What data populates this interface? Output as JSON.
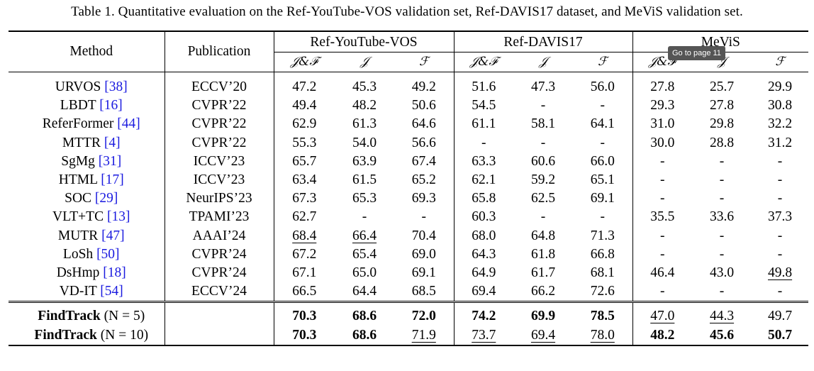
{
  "caption": "Table 1. Quantitative evaluation on the Ref-YouTube-VOS validation set, Ref-DAVIS17 dataset, and MeViS validation set.",
  "headers": {
    "method": "Method",
    "publication": "Publication",
    "groups": [
      "Ref-YouTube-VOS",
      "Ref-DAVIS17",
      "MeViS"
    ],
    "metrics": [
      "𝒥&ℱ",
      "𝒥",
      "ℱ",
      "𝒥&ℱ",
      "𝒥",
      "ℱ",
      "𝒥&ℱ",
      "𝒥",
      "ℱ"
    ]
  },
  "rows": [
    {
      "name": "URVOS ",
      "ref": "[38]",
      "pub": "ECCV’20",
      "vals": [
        "47.2",
        "45.3",
        "49.2",
        "51.6",
        "47.3",
        "56.0",
        "27.8",
        "25.7",
        "29.9"
      ]
    },
    {
      "name": "LBDT ",
      "ref": "[16]",
      "pub": "CVPR’22",
      "vals": [
        "49.4",
        "48.2",
        "50.6",
        "54.5",
        "-",
        "-",
        "29.3",
        "27.8",
        "30.8"
      ]
    },
    {
      "name": "ReferFormer ",
      "ref": "[44]",
      "pub": "CVPR’22",
      "vals": [
        "62.9",
        "61.3",
        "64.6",
        "61.1",
        "58.1",
        "64.1",
        "31.0",
        "29.8",
        "32.2"
      ]
    },
    {
      "name": "MTTR ",
      "ref": "[4]",
      "pub": "CVPR’22",
      "vals": [
        "55.3",
        "54.0",
        "56.6",
        "-",
        "-",
        "-",
        "30.0",
        "28.8",
        "31.2"
      ]
    },
    {
      "name": "SgMg ",
      "ref": "[31]",
      "pub": "ICCV’23",
      "vals": [
        "65.7",
        "63.9",
        "67.4",
        "63.3",
        "60.6",
        "66.0",
        "-",
        "-",
        "-"
      ]
    },
    {
      "name": "HTML ",
      "ref": "[17]",
      "pub": "ICCV’23",
      "vals": [
        "63.4",
        "61.5",
        "65.2",
        "62.1",
        "59.2",
        "65.1",
        "-",
        "-",
        "-"
      ]
    },
    {
      "name": "SOC ",
      "ref": "[29]",
      "pub": "NeurIPS’23",
      "vals": [
        "67.3",
        "65.3",
        "69.3",
        "65.8",
        "62.5",
        "69.1",
        "-",
        "-",
        "-"
      ]
    },
    {
      "name": "VLT+TC ",
      "ref": "[13]",
      "pub": "TPAMI’23",
      "vals": [
        "62.7",
        "-",
        "-",
        "60.3",
        "-",
        "-",
        "35.5",
        "33.6",
        "37.3"
      ]
    },
    {
      "name": "MUTR ",
      "ref": "[47]",
      "pub": "AAAI’24",
      "vals": [
        "68.4",
        "66.4",
        "70.4",
        "68.0",
        "64.8",
        "71.3",
        "-",
        "-",
        "-"
      ]
    },
    {
      "name": "LoSh ",
      "ref": "[50]",
      "pub": "CVPR’24",
      "vals": [
        "67.2",
        "65.4",
        "69.0",
        "64.3",
        "61.8",
        "66.8",
        "-",
        "-",
        "-"
      ]
    },
    {
      "name": "DsHmp ",
      "ref": "[18]",
      "pub": "CVPR’24",
      "vals": [
        "67.1",
        "65.0",
        "69.1",
        "64.9",
        "61.7",
        "68.1",
        "46.4",
        "43.0",
        "49.8"
      ]
    },
    {
      "name": "VD-IT ",
      "ref": "[54]",
      "pub": "ECCV’24",
      "vals": [
        "66.5",
        "64.4",
        "68.5",
        "69.4",
        "66.2",
        "72.6",
        "-",
        "-",
        "-"
      ]
    }
  ],
  "ours": [
    {
      "name": "FindTrack",
      "param": " (N = 5)",
      "pub": "",
      "vals": [
        "70.3",
        "68.6",
        "72.0",
        "74.2",
        "69.9",
        "78.5",
        "47.0",
        "44.3",
        "49.7"
      ]
    },
    {
      "name": "FindTrack",
      "param": " (N = 10)",
      "pub": "",
      "vals": [
        "70.3",
        "68.6",
        "71.9",
        "73.7",
        "69.4",
        "78.0",
        "48.2",
        "45.6",
        "50.7"
      ]
    }
  ],
  "styles": {
    "underline": [
      "8-0",
      "8-1",
      "10-8"
    ],
    "ours_bold": [
      "0-0",
      "0-1",
      "0-2",
      "0-3",
      "0-4",
      "0-5",
      "1-0",
      "1-1",
      "1-6",
      "1-7",
      "1-8"
    ],
    "ours_underline": [
      "0-6",
      "0-7",
      "1-2",
      "1-3",
      "1-4",
      "1-5"
    ]
  },
  "tooltip": "Go to page 11"
}
